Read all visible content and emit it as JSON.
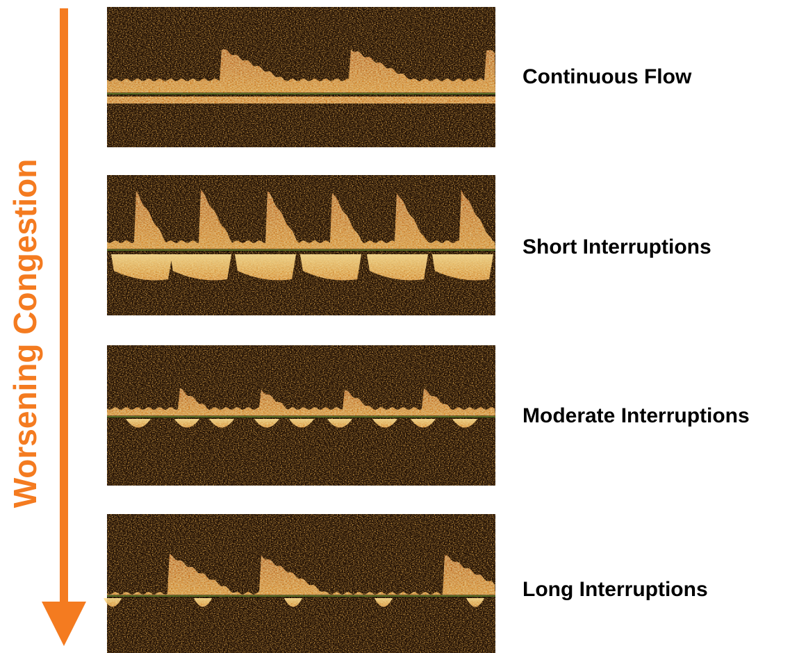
{
  "arrow_label": "Worsening Congestion",
  "panels": [
    {
      "label": "Continuous Flow"
    },
    {
      "label": "Short Interruptions"
    },
    {
      "label": "Moderate Interruptions"
    },
    {
      "label": "Long Interruptions"
    }
  ]
}
